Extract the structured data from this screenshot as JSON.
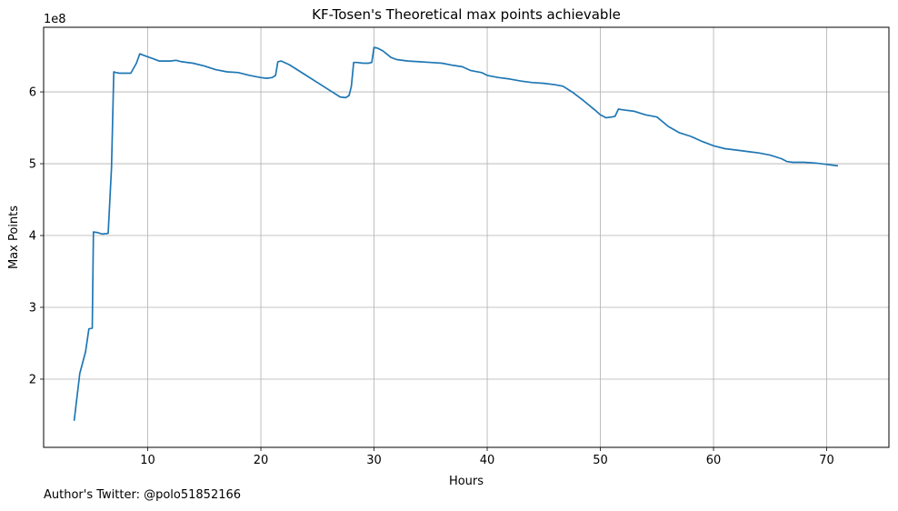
{
  "chart_data": {
    "type": "line",
    "title": "KF-Tosen's Theoretical max points achievable",
    "xlabel": "Hours",
    "ylabel": "Max Points",
    "offset_label": "1e8",
    "xlim": [
      0.8,
      75.5
    ],
    "ylim": [
      1.05,
      6.9
    ],
    "xticks": [
      10,
      20,
      30,
      40,
      50,
      60,
      70
    ],
    "yticks": [
      2,
      3,
      4,
      5,
      6
    ],
    "xtick_labels": [
      "10",
      "20",
      "30",
      "40",
      "50",
      "60",
      "70"
    ],
    "ytick_labels": [
      "2",
      "3",
      "4",
      "5",
      "6"
    ],
    "grid": true,
    "line_color": "#1f77b4",
    "series": [
      {
        "name": "Max Points",
        "x": [
          3.5,
          4.0,
          4.5,
          4.8,
          5.1,
          5.2,
          5.6,
          6.0,
          6.5,
          6.8,
          7.0,
          7.2,
          7.5,
          8.0,
          8.5,
          9.0,
          9.3,
          9.8,
          10.5,
          11.0,
          11.5,
          12.0,
          12.5,
          13.0,
          14.0,
          15.0,
          16.0,
          17.0,
          18.0,
          19.0,
          20.0,
          20.5,
          21.0,
          21.3,
          21.5,
          21.8,
          22.5,
          23.0,
          24.0,
          25.0,
          26.0,
          27.0,
          27.5,
          27.8,
          28.0,
          28.2,
          28.5,
          29.0,
          29.5,
          29.8,
          30.0,
          30.3,
          30.8,
          31.5,
          32.0,
          33.0,
          34.0,
          35.0,
          36.0,
          37.0,
          37.8,
          38.5,
          39.5,
          40.0,
          41.0,
          42.0,
          43.0,
          44.0,
          45.0,
          46.0,
          46.7,
          47.5,
          48.5,
          49.5,
          50.0,
          50.5,
          51.0,
          51.3,
          51.6,
          52.0,
          53.0,
          54.0,
          55.0,
          56.0,
          57.0,
          58.0,
          59.0,
          60.0,
          61.0,
          62.0,
          63.0,
          64.0,
          65.0,
          66.0,
          66.5,
          67.0,
          68.0,
          69.0,
          70.0,
          70.5,
          71.0
        ],
        "y": [
          1.42,
          2.08,
          2.38,
          2.7,
          2.71,
          4.05,
          4.04,
          4.02,
          4.03,
          4.95,
          6.28,
          6.27,
          6.26,
          6.26,
          6.26,
          6.4,
          6.53,
          6.5,
          6.46,
          6.43,
          6.43,
          6.43,
          6.44,
          6.42,
          6.4,
          6.36,
          6.31,
          6.28,
          6.27,
          6.23,
          6.2,
          6.19,
          6.2,
          6.23,
          6.42,
          6.43,
          6.38,
          6.33,
          6.23,
          6.13,
          6.03,
          5.93,
          5.92,
          5.95,
          6.08,
          6.41,
          6.41,
          6.4,
          6.4,
          6.41,
          6.62,
          6.61,
          6.57,
          6.48,
          6.45,
          6.43,
          6.42,
          6.41,
          6.4,
          6.37,
          6.35,
          6.3,
          6.27,
          6.23,
          6.2,
          6.18,
          6.15,
          6.13,
          6.12,
          6.1,
          6.08,
          6.0,
          5.88,
          5.75,
          5.68,
          5.64,
          5.65,
          5.66,
          5.76,
          5.75,
          5.73,
          5.68,
          5.65,
          5.52,
          5.43,
          5.38,
          5.31,
          5.25,
          5.21,
          5.19,
          5.17,
          5.15,
          5.12,
          5.07,
          5.03,
          5.02,
          5.02,
          5.01,
          4.99,
          4.98,
          4.97
        ]
      }
    ]
  },
  "footnote": "Author's Twitter: @polo51852166"
}
